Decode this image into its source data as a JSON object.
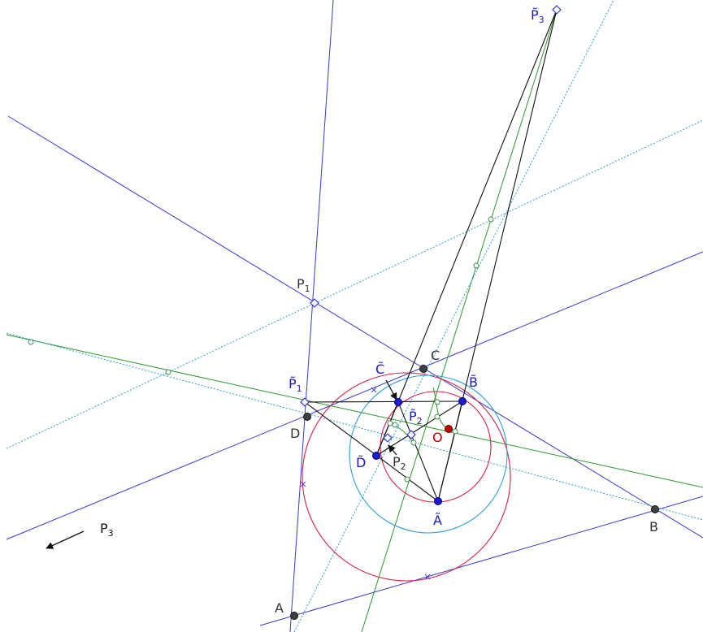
{
  "points": {
    "A": {
      "letter": "A"
    },
    "B": {
      "letter": "B"
    },
    "C": {
      "letter": "C"
    },
    "D": {
      "letter": "D"
    },
    "O": {
      "letter": "O"
    },
    "At": {
      "letter": "Ã"
    },
    "Bt": {
      "letter": "B̃"
    },
    "Ct": {
      "letter": "C̃"
    },
    "Dt": {
      "letter": "D̃"
    },
    "P1": {
      "letter": "P",
      "sub": "1"
    },
    "P2": {
      "letter": "P",
      "sub": "2"
    },
    "P3": {
      "letter": "P",
      "sub": "3"
    },
    "P1t": {
      "letter": "P̃",
      "sub": "1"
    },
    "P2t": {
      "letter": "P̃",
      "sub": "2"
    },
    "P3t": {
      "letter": "P̃",
      "sub": "3"
    }
  },
  "colors": {
    "blue": "#3a3acc",
    "green": "#2a9a2a",
    "dotted": "#2a9ad4",
    "red": "#d4204a",
    "cyan": "#2aa0dc",
    "gray_point": "#404040",
    "blue_point": "#1a1ad8",
    "center_point": "#c00000",
    "label_gray": "#333333",
    "label_blue": "#1a1ac0",
    "label_red": "#c00000"
  }
}
